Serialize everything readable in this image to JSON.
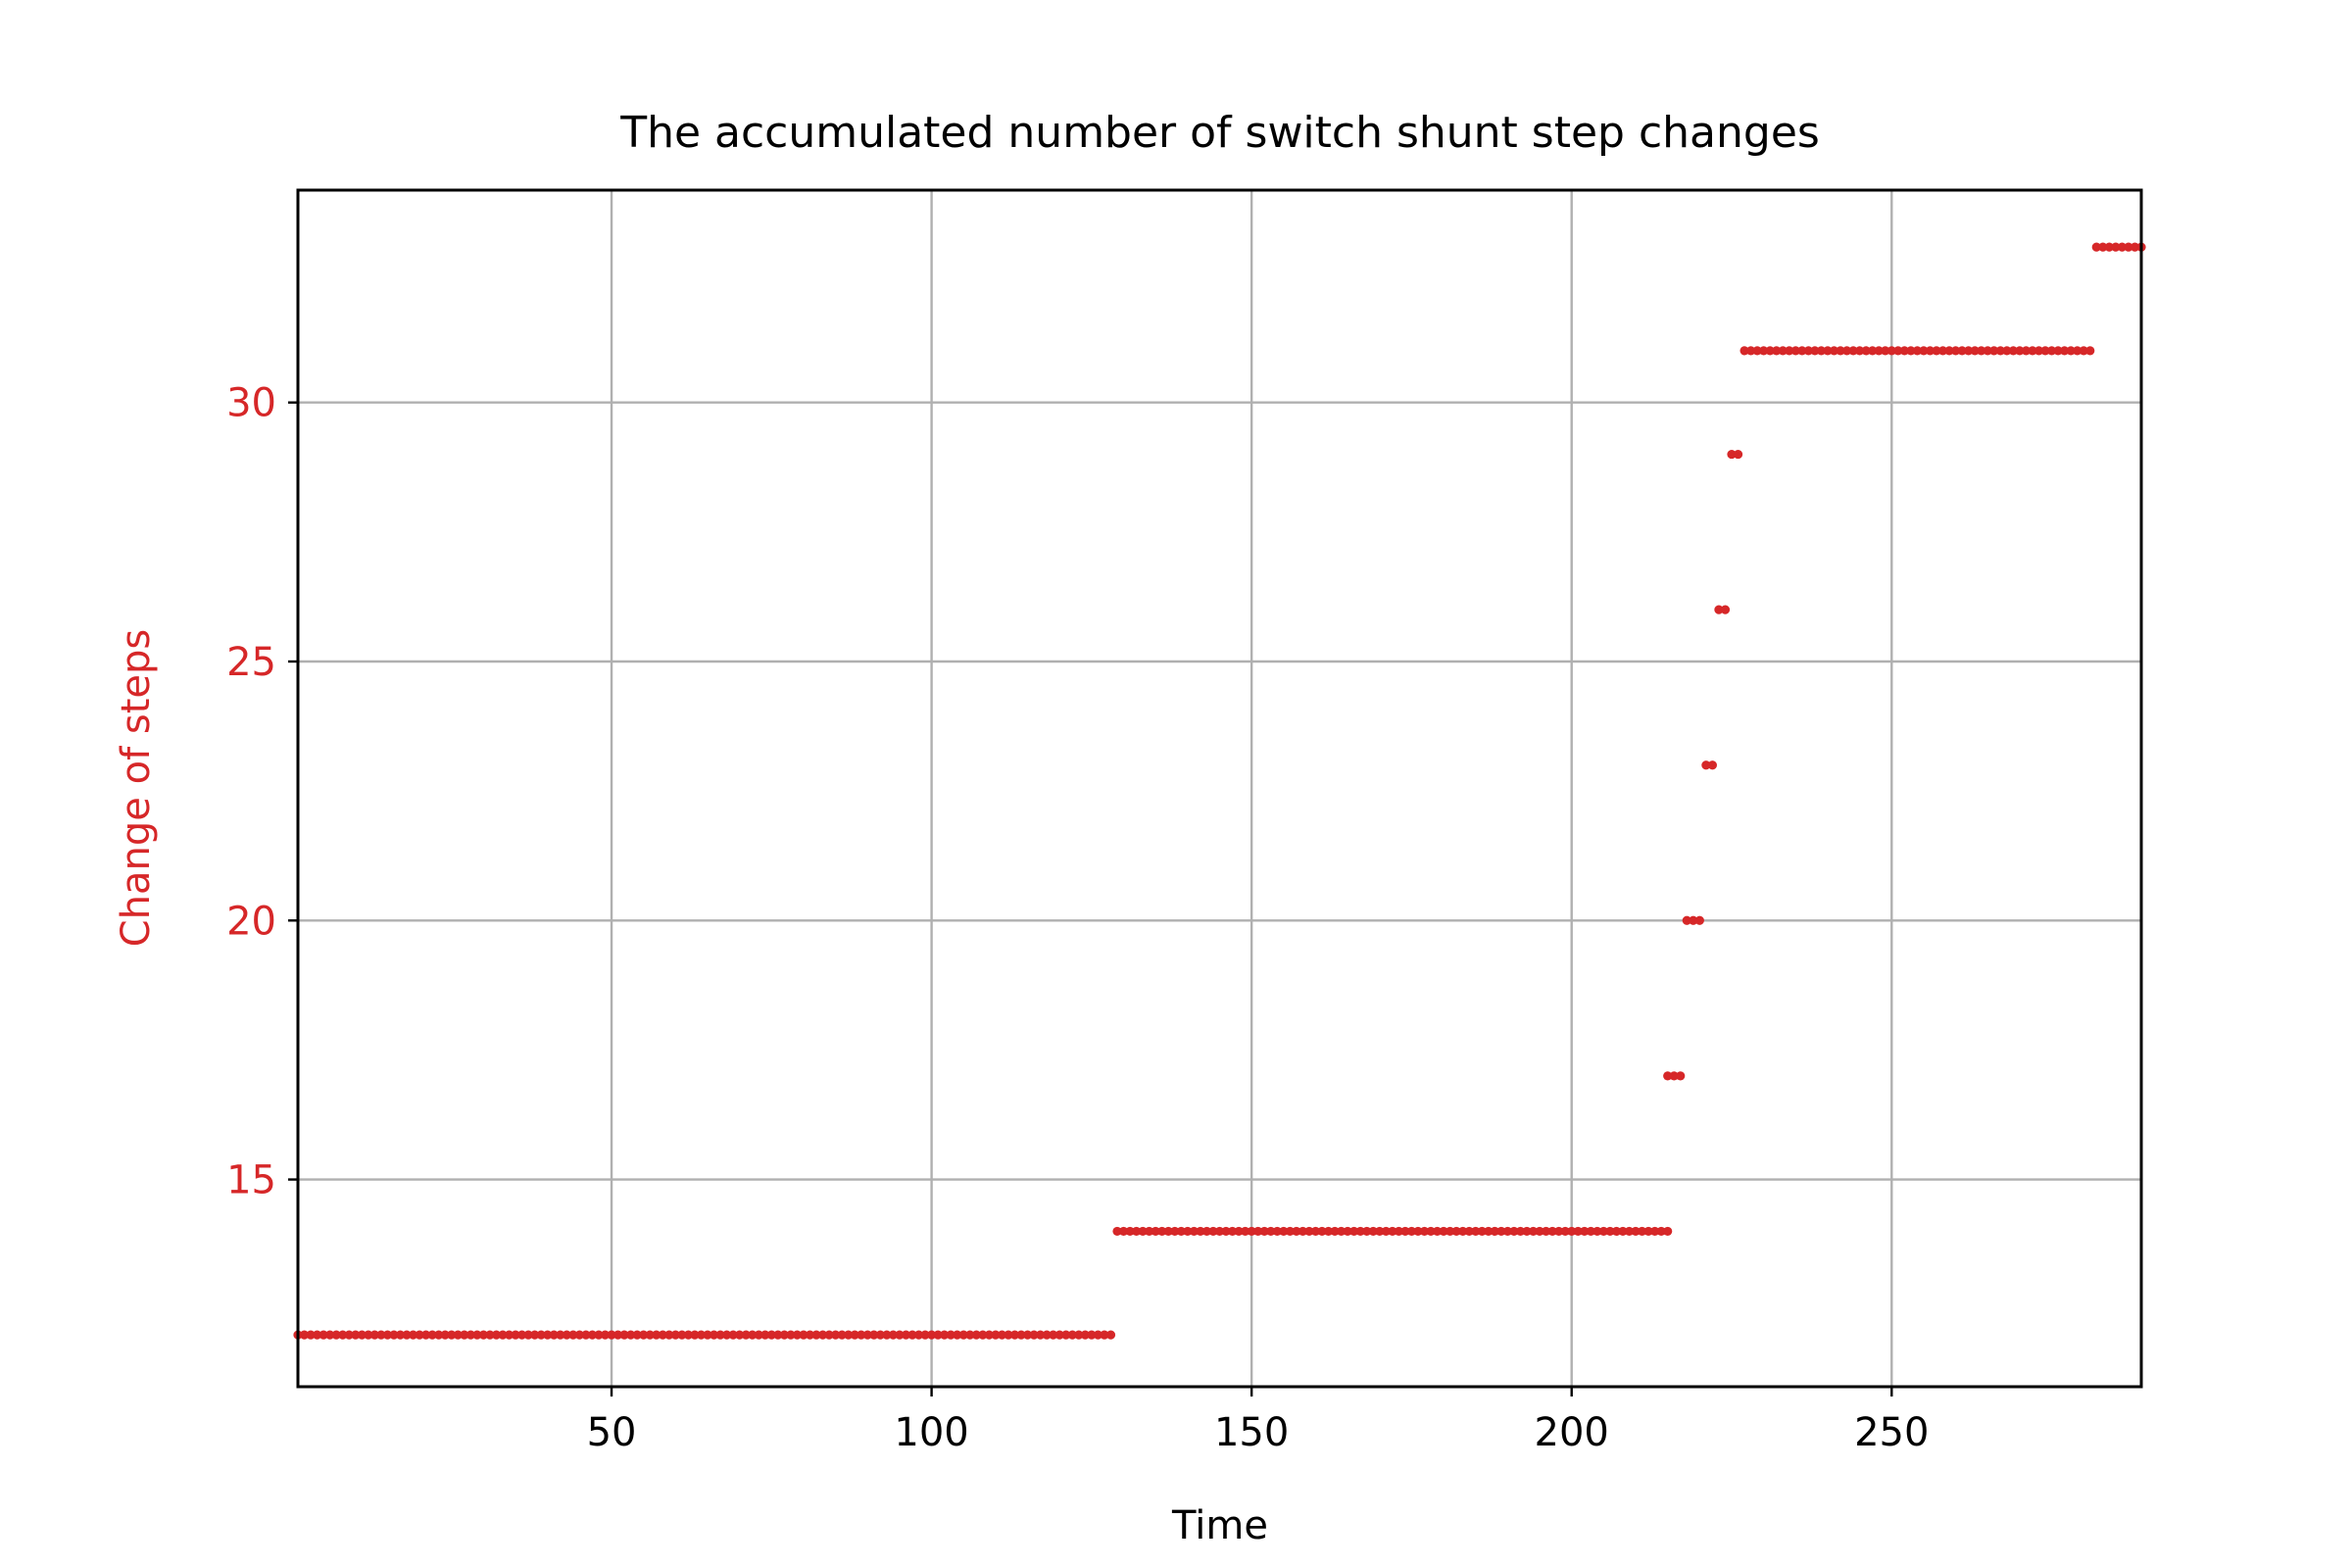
{
  "chart_data": {
    "type": "scatter",
    "title": "The accumulated number of switch shunt step changes",
    "xlabel": "Time",
    "ylabel": "Change of steps",
    "xlim": [
      1,
      289
    ],
    "ylim": [
      11.0,
      34.1
    ],
    "xticks": [
      50,
      100,
      150,
      200,
      250
    ],
    "yticks": [
      15,
      20,
      25,
      30
    ],
    "grid": true,
    "colors": {
      "series": "#d62728",
      "ylabel": "#d62728",
      "grid": "#b0b0b0",
      "axis": "#000000"
    },
    "series": [
      {
        "name": "Change of steps",
        "segments": [
          {
            "x_start": 1,
            "x_end": 128,
            "y": 12
          },
          {
            "x_start": 129,
            "x_end": 215,
            "y": 14
          },
          {
            "x_start": 215,
            "x_end": 217,
            "y": 17
          },
          {
            "x_start": 218,
            "x_end": 220,
            "y": 20
          },
          {
            "x_start": 221,
            "x_end": 222,
            "y": 23
          },
          {
            "x_start": 223,
            "x_end": 224,
            "y": 26
          },
          {
            "x_start": 225,
            "x_end": 226,
            "y": 29
          },
          {
            "x_start": 227,
            "x_end": 281,
            "y": 31
          },
          {
            "x_start": 282,
            "x_end": 289,
            "y": 33
          }
        ]
      }
    ]
  }
}
